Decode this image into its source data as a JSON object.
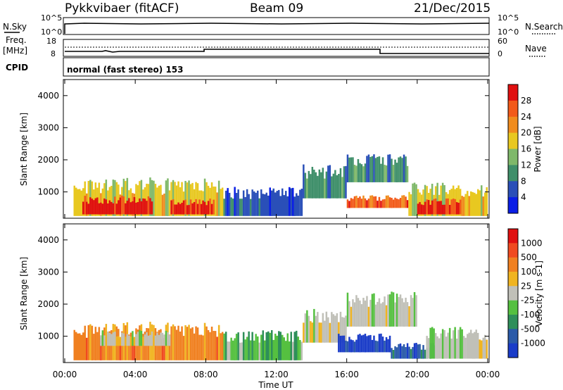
{
  "header": {
    "radar": "Pykkvibaer (fitACF)",
    "beam": "Beam 09",
    "date": "21/Dec/2015"
  },
  "side_labels": {
    "nsky": "N.Sky",
    "nsearch": "N.Search",
    "freq": "Freq.",
    "mhz": "[MHz]",
    "nave": "Nave",
    "cpid": "CPID"
  },
  "nsky_axis": {
    "top": "10^5",
    "bottom": "10^0"
  },
  "nsearch_axis": {
    "top": "10^5",
    "bottom": "10^0"
  },
  "freq_axis": {
    "top": "18",
    "bottom": "8"
  },
  "nave_axis": {
    "top": "60",
    "bottom": "0"
  },
  "cpid_text": "normal (fast stereo) 153",
  "chart_data": [
    {
      "type": "heatmap",
      "title": "Power",
      "ylabel": "Slant Range [km]",
      "colorbar_label": "Power [dB]",
      "ylim": [
        180,
        4500
      ],
      "yticks": [
        "1000",
        "2000",
        "3000",
        "4000"
      ],
      "colorbar": {
        "ticks": [
          "28",
          "24",
          "20",
          "16",
          "12",
          "8",
          "4"
        ],
        "colors": [
          "#0a1ee6",
          "#2a4fb8",
          "#3f8f6a",
          "#7fb86a",
          "#e8c820",
          "#f08c1e",
          "#f25a1a",
          "#e01010"
        ]
      },
      "regions": [
        {
          "t0": 0.5,
          "t1": 9.0,
          "r0": 250,
          "r1": 1450,
          "level": 4
        },
        {
          "t0": 1.0,
          "t1": 5.0,
          "r0": 300,
          "r1": 900,
          "level": 7
        },
        {
          "t0": 6.0,
          "t1": 8.5,
          "r0": 300,
          "r1": 800,
          "level": 7
        },
        {
          "t0": 9.0,
          "t1": 13.5,
          "r0": 250,
          "r1": 1200,
          "level": 1
        },
        {
          "t0": 13.5,
          "t1": 16.0,
          "r0": 800,
          "r1": 1900,
          "level": 2
        },
        {
          "t0": 16.0,
          "t1": 19.5,
          "r0": 1300,
          "r1": 2200,
          "level": 2
        },
        {
          "t0": 16.0,
          "t1": 19.5,
          "r0": 500,
          "r1": 900,
          "level": 6
        },
        {
          "t0": 19.5,
          "t1": 24.0,
          "r0": 250,
          "r1": 1300,
          "level": 4
        },
        {
          "t0": 20.0,
          "t1": 22.5,
          "r0": 300,
          "r1": 800,
          "level": 7
        }
      ]
    },
    {
      "type": "heatmap",
      "title": "Velocity",
      "ylabel": "Slant Range [km]",
      "xlabel": "Time UT",
      "colorbar_label": "Velocity [m s-1]",
      "ylim": [
        180,
        4500
      ],
      "yticks": [
        "1000",
        "2000",
        "3000",
        "4000"
      ],
      "xticks": [
        "00:00",
        "04:00",
        "08:00",
        "12:00",
        "16:00",
        "20:00",
        "00:00"
      ],
      "colorbar": {
        "ticks": [
          "1000",
          "500",
          "100",
          "25",
          "-25",
          "-100",
          "-500",
          "-1000"
        ],
        "colors": [
          "#1a3cc8",
          "#2a5aa8",
          "#2f8f5a",
          "#55c040",
          "#c0c0b8",
          "#f0b420",
          "#f08020",
          "#f04a20",
          "#e01010"
        ]
      },
      "regions": [
        {
          "t0": 0.5,
          "t1": 9.0,
          "r0": 250,
          "r1": 1450,
          "level": 6
        },
        {
          "t0": 2.0,
          "t1": 6.0,
          "r0": 700,
          "r1": 1200,
          "level": 4
        },
        {
          "t0": 9.0,
          "t1": 13.5,
          "r0": 250,
          "r1": 1200,
          "level": 3
        },
        {
          "t0": 13.5,
          "t1": 16.0,
          "r0": 800,
          "r1": 1900,
          "level": 4
        },
        {
          "t0": 16.0,
          "t1": 20.0,
          "r0": 1300,
          "r1": 2400,
          "level": 4
        },
        {
          "t0": 15.5,
          "t1": 18.5,
          "r0": 500,
          "r1": 1100,
          "level": 0
        },
        {
          "t0": 18.5,
          "t1": 21.0,
          "r0": 300,
          "r1": 800,
          "level": 1
        },
        {
          "t0": 20.5,
          "t1": 24.0,
          "r0": 300,
          "r1": 1300,
          "level": 4
        }
      ]
    }
  ]
}
